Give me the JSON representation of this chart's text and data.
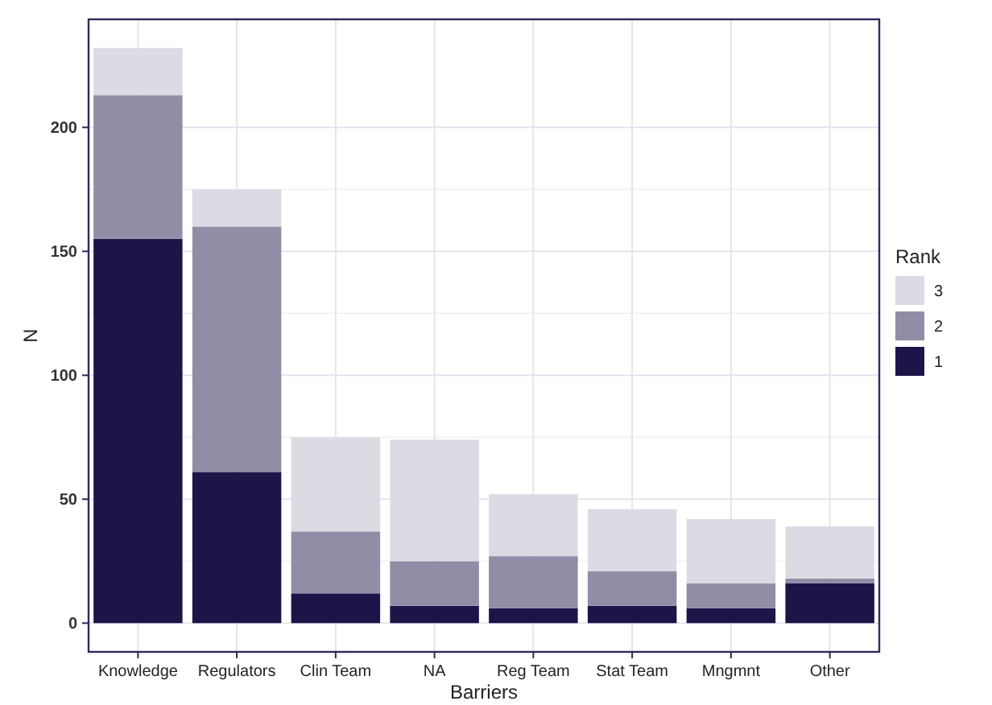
{
  "chart_data": {
    "type": "bar",
    "stacked": true,
    "xlabel": "Barriers",
    "ylabel": "N",
    "legend_title": "Rank",
    "legend": "right",
    "grid": true,
    "categories": [
      "Knowledge",
      "Regulators",
      "Clin Team",
      "NA",
      "Reg Team",
      "Stat Team",
      "Mngmnt",
      "Other"
    ],
    "series": [
      {
        "name": "1",
        "color": "#1c1548",
        "values": [
          155,
          61,
          12,
          7,
          6,
          7,
          6,
          16
        ]
      },
      {
        "name": "2",
        "color": "#908ea6",
        "values": [
          58,
          99,
          25,
          18,
          21,
          14,
          10,
          2
        ]
      },
      {
        "name": "3",
        "color": "#dcdbe3",
        "values": [
          19,
          15,
          38,
          49,
          25,
          25,
          26,
          21
        ]
      }
    ],
    "ylim": [
      -11.6,
      243.6
    ],
    "yticks": [
      0,
      50,
      100,
      150,
      200
    ]
  }
}
